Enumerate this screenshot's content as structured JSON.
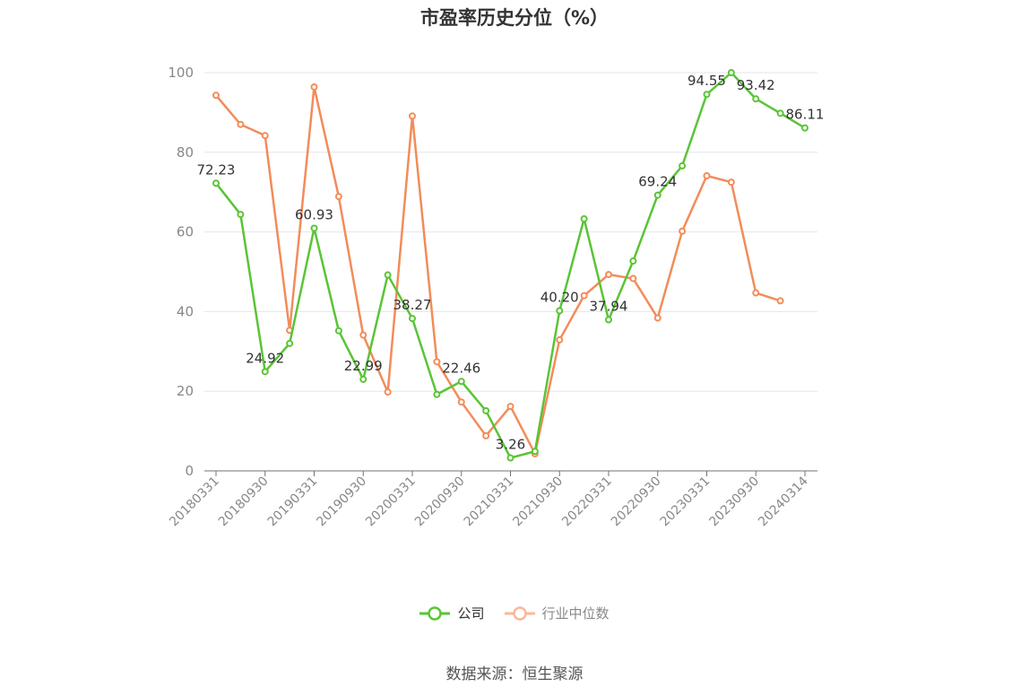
{
  "chart_data": {
    "type": "line",
    "title": "市盈率历史分位（%）",
    "ylim": [
      0,
      100
    ],
    "yticks": [
      0,
      20,
      40,
      60,
      80,
      100
    ],
    "x_tick_labels": [
      "20180331",
      "20180930",
      "20190331",
      "20190930",
      "20200331",
      "20200930",
      "20210331",
      "20210930",
      "20220331",
      "20220930",
      "20230331",
      "20230930",
      "20240314"
    ],
    "x": [
      "20180331",
      "20180630",
      "20180930",
      "20181231",
      "20190331",
      "20190630",
      "20190930",
      "20191231",
      "20200331",
      "20200630",
      "20200930",
      "20201231",
      "20210331",
      "20210630",
      "20210930",
      "20211231",
      "20220331",
      "20220630",
      "20220930",
      "20221231",
      "20230331",
      "20230630",
      "20230930",
      "20231231",
      "20240314"
    ],
    "series": [
      {
        "name": "公司",
        "color": "#5ac437",
        "values": [
          72.23,
          64.4,
          24.92,
          32.0,
          60.93,
          35.2,
          22.99,
          49.2,
          38.27,
          19.2,
          22.46,
          15.1,
          3.26,
          4.9,
          40.2,
          63.3,
          37.94,
          52.7,
          69.24,
          76.6,
          94.55,
          100.0,
          93.42,
          89.8,
          86.11
        ]
      },
      {
        "name": "行业中位数",
        "color": "#f28c5a",
        "values": [
          94.3,
          87.0,
          84.2,
          35.3,
          96.4,
          68.9,
          34.1,
          19.8,
          89.1,
          27.4,
          17.3,
          8.8,
          16.2,
          4.3,
          32.9,
          44.0,
          49.3,
          48.3,
          38.4,
          60.2,
          74.1,
          72.5,
          44.7,
          42.7,
          null
        ]
      }
    ],
    "data_labels": [
      {
        "series": 0,
        "index": 0,
        "text": "72.23"
      },
      {
        "series": 0,
        "index": 2,
        "text": "24.92"
      },
      {
        "series": 0,
        "index": 4,
        "text": "60.93"
      },
      {
        "series": 0,
        "index": 6,
        "text": "22.99"
      },
      {
        "series": 0,
        "index": 8,
        "text": "38.27"
      },
      {
        "series": 0,
        "index": 10,
        "text": "22.46"
      },
      {
        "series": 0,
        "index": 12,
        "text": "3.26"
      },
      {
        "series": 0,
        "index": 14,
        "text": "40.20"
      },
      {
        "series": 0,
        "index": 16,
        "text": "37.94"
      },
      {
        "series": 0,
        "index": 18,
        "text": "69.24"
      },
      {
        "series": 0,
        "index": 20,
        "text": "94.55"
      },
      {
        "series": 0,
        "index": 22,
        "text": "93.42"
      },
      {
        "series": 0,
        "index": 24,
        "text": "86.11"
      }
    ],
    "legend_position": "bottom-center",
    "grid": true
  },
  "legend": [
    {
      "label": "公司",
      "color": "#5ac437"
    },
    {
      "label": "行业中位数",
      "color": "#f9b89a"
    }
  ],
  "source": "数据来源：恒生聚源"
}
